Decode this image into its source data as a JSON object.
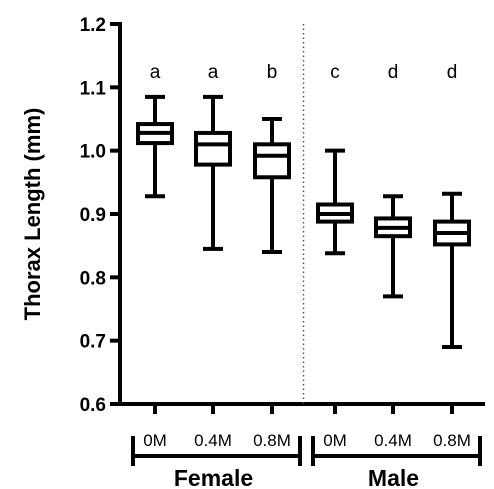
{
  "chart_data": {
    "type": "box",
    "ylabel": "Thorax Length  (mm)",
    "ylim": [
      0.6,
      1.2
    ],
    "yticks": [
      "0.6",
      "0.7",
      "0.8",
      "0.9",
      "1.0",
      "1.1",
      "1.2"
    ],
    "categories": [
      "0M",
      "0.4M",
      "0.8M",
      "0M",
      "0.4M",
      "0.8M"
    ],
    "groups": [
      {
        "label": "Female",
        "members": [
          0,
          1,
          2
        ]
      },
      {
        "label": "Male",
        "members": [
          3,
          4,
          5
        ]
      }
    ],
    "boxes": [
      {
        "min": 0.928,
        "q1": 1.012,
        "median": 1.028,
        "q3": 1.042,
        "max": 1.085
      },
      {
        "min": 0.845,
        "q1": 0.978,
        "median": 1.01,
        "q3": 1.028,
        "max": 1.085
      },
      {
        "min": 0.84,
        "q1": 0.958,
        "median": 0.992,
        "q3": 1.01,
        "max": 1.05
      },
      {
        "min": 0.838,
        "q1": 0.888,
        "median": 0.9,
        "q3": 0.915,
        "max": 1.0
      },
      {
        "min": 0.77,
        "q1": 0.865,
        "median": 0.878,
        "q3": 0.893,
        "max": 0.928
      },
      {
        "min": 0.69,
        "q1": 0.852,
        "median": 0.87,
        "q3": 0.888,
        "max": 0.932
      }
    ],
    "significance": [
      "a",
      "a",
      "b",
      "c",
      "d",
      "d"
    ],
    "divider_after_category": 2
  }
}
